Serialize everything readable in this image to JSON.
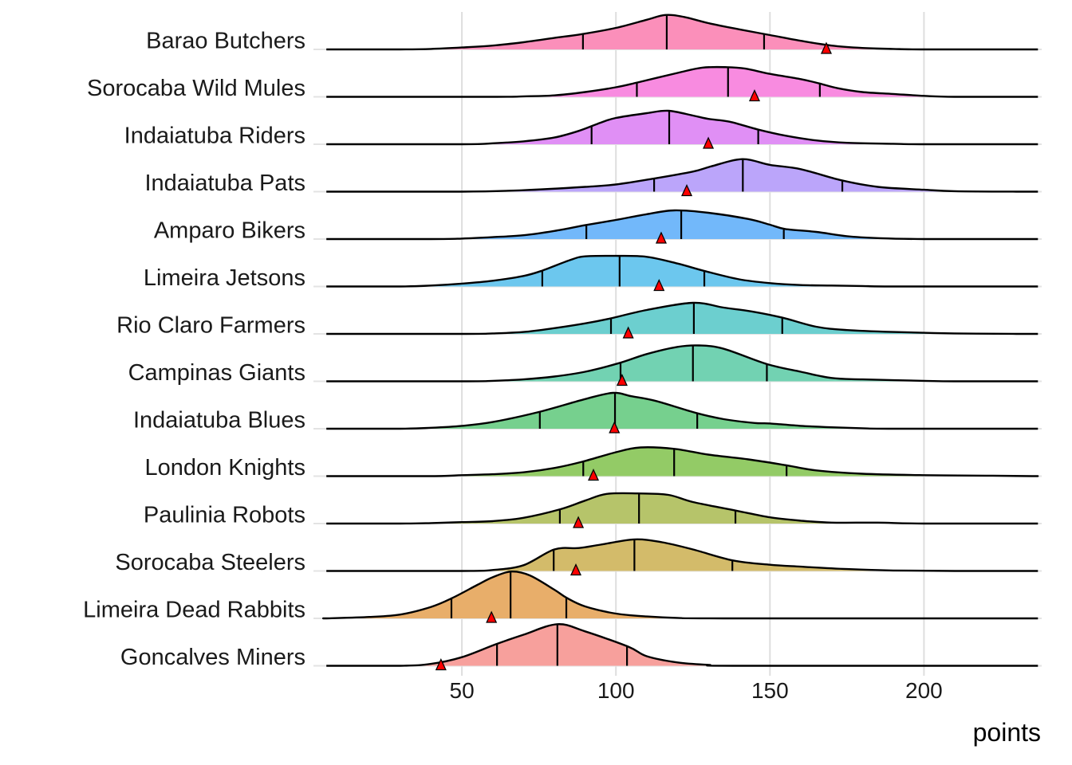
{
  "chart_data": {
    "type": "ridgeline",
    "title": "",
    "xlabel": "points",
    "ylabel": "",
    "xlim": [
      6,
      237
    ],
    "x_ticks": [
      50,
      100,
      150,
      200
    ],
    "x_tick_labels": [
      "50",
      "100",
      "150",
      "200"
    ],
    "grid": "vertical major",
    "marker_color": "#FF0000",
    "series": [
      {
        "name": "Barao Butchers",
        "color": "#FB8FBA",
        "quartiles": [
          89.3,
          116.5,
          148.1
        ],
        "marker": 168.3,
        "density": [
          [
            30,
            0
          ],
          [
            40,
            0.01
          ],
          [
            50,
            0.04
          ],
          [
            60,
            0.08
          ],
          [
            70,
            0.15
          ],
          [
            80,
            0.24
          ],
          [
            89,
            0.32
          ],
          [
            100,
            0.45
          ],
          [
            110,
            0.62
          ],
          [
            116,
            0.72
          ],
          [
            122,
            0.68
          ],
          [
            130,
            0.55
          ],
          [
            140,
            0.42
          ],
          [
            150,
            0.3
          ],
          [
            160,
            0.18
          ],
          [
            170,
            0.08
          ],
          [
            180,
            0.03
          ],
          [
            190,
            0.01
          ],
          [
            200,
            0
          ]
        ]
      },
      {
        "name": "Sorocaba Wild Mules",
        "color": "#F88BE0",
        "quartiles": [
          106.8,
          136.4,
          166.2
        ],
        "marker": 145,
        "density": [
          [
            60,
            0
          ],
          [
            70,
            0.01
          ],
          [
            80,
            0.03
          ],
          [
            90,
            0.1
          ],
          [
            100,
            0.2
          ],
          [
            107,
            0.3
          ],
          [
            120,
            0.5
          ],
          [
            128,
            0.61
          ],
          [
            136,
            0.62
          ],
          [
            142,
            0.59
          ],
          [
            150,
            0.48
          ],
          [
            160,
            0.37
          ],
          [
            166,
            0.28
          ],
          [
            172,
            0.18
          ],
          [
            180,
            0.1
          ],
          [
            190,
            0.06
          ],
          [
            200,
            0.02
          ],
          [
            210,
            0
          ]
        ]
      },
      {
        "name": "Indaiatuba Riders",
        "color": "#E08FF5",
        "quartiles": [
          92.1,
          117.3,
          146.2
        ],
        "marker": 130,
        "density": [
          [
            50,
            0
          ],
          [
            60,
            0.02
          ],
          [
            70,
            0.06
          ],
          [
            80,
            0.14
          ],
          [
            88,
            0.28
          ],
          [
            95,
            0.45
          ],
          [
            100,
            0.55
          ],
          [
            110,
            0.65
          ],
          [
            117,
            0.7
          ],
          [
            125,
            0.6
          ],
          [
            130,
            0.53
          ],
          [
            137,
            0.47
          ],
          [
            146,
            0.31
          ],
          [
            155,
            0.18
          ],
          [
            165,
            0.08
          ],
          [
            175,
            0.03
          ],
          [
            190,
            0.01
          ],
          [
            200,
            0
          ]
        ]
      },
      {
        "name": "Indaiatuba Pats",
        "color": "#BBA5FA",
        "quartiles": [
          112.4,
          141.2,
          173.5
        ],
        "marker": 123,
        "density": [
          [
            50,
            0
          ],
          [
            70,
            0.03
          ],
          [
            90,
            0.1
          ],
          [
            100,
            0.15
          ],
          [
            112,
            0.27
          ],
          [
            125,
            0.42
          ],
          [
            131,
            0.53
          ],
          [
            141,
            0.68
          ],
          [
            150,
            0.56
          ],
          [
            160,
            0.47
          ],
          [
            173,
            0.24
          ],
          [
            185,
            0.1
          ],
          [
            200,
            0.04
          ],
          [
            210,
            0.01
          ],
          [
            230,
            0
          ]
        ]
      },
      {
        "name": "Amparo Bikers",
        "color": "#72B8FA",
        "quartiles": [
          90.4,
          121.2,
          154.5
        ],
        "marker": 114.7,
        "density": [
          [
            40,
            0
          ],
          [
            50,
            0.01
          ],
          [
            60,
            0.04
          ],
          [
            70,
            0.08
          ],
          [
            80,
            0.17
          ],
          [
            90,
            0.29
          ],
          [
            100,
            0.4
          ],
          [
            110,
            0.52
          ],
          [
            119,
            0.6
          ],
          [
            130,
            0.55
          ],
          [
            143,
            0.42
          ],
          [
            150,
            0.3
          ],
          [
            155,
            0.21
          ],
          [
            165,
            0.15
          ],
          [
            175,
            0.06
          ],
          [
            185,
            0.02
          ],
          [
            200,
            0
          ]
        ]
      },
      {
        "name": "Limeira Jetsons",
        "color": "#6CC7EE",
        "quartiles": [
          76.1,
          101.2,
          128.7
        ],
        "marker": 114,
        "density": [
          [
            30,
            0
          ],
          [
            40,
            0.02
          ],
          [
            50,
            0.06
          ],
          [
            60,
            0.12
          ],
          [
            70,
            0.22
          ],
          [
            76,
            0.33
          ],
          [
            85,
            0.55
          ],
          [
            90,
            0.63
          ],
          [
            100,
            0.64
          ],
          [
            110,
            0.62
          ],
          [
            120,
            0.48
          ],
          [
            129,
            0.32
          ],
          [
            140,
            0.15
          ],
          [
            150,
            0.07
          ],
          [
            160,
            0.03
          ],
          [
            170,
            0.02
          ],
          [
            180,
            0.01
          ],
          [
            190,
            0
          ]
        ]
      },
      {
        "name": "Rio Claro Farmers",
        "color": "#6CCFCF",
        "quartiles": [
          98.4,
          125.3,
          154
        ],
        "marker": 104,
        "density": [
          [
            50,
            0
          ],
          [
            60,
            0.01
          ],
          [
            70,
            0.04
          ],
          [
            80,
            0.12
          ],
          [
            90,
            0.22
          ],
          [
            98,
            0.32
          ],
          [
            110,
            0.5
          ],
          [
            125,
            0.65
          ],
          [
            135,
            0.55
          ],
          [
            144,
            0.47
          ],
          [
            154,
            0.34
          ],
          [
            165,
            0.15
          ],
          [
            175,
            0.08
          ],
          [
            190,
            0.04
          ],
          [
            210,
            0.01
          ],
          [
            230,
            0
          ]
        ]
      },
      {
        "name": "Campinas Giants",
        "color": "#72D2B2",
        "quartiles": [
          101.5,
          125,
          149
        ],
        "marker": 102,
        "density": [
          [
            50,
            0
          ],
          [
            60,
            0.01
          ],
          [
            70,
            0.04
          ],
          [
            80,
            0.1
          ],
          [
            90,
            0.2
          ],
          [
            101,
            0.38
          ],
          [
            110,
            0.57
          ],
          [
            120,
            0.72
          ],
          [
            127,
            0.75
          ],
          [
            135,
            0.68
          ],
          [
            149,
            0.36
          ],
          [
            160,
            0.2
          ],
          [
            170,
            0.07
          ],
          [
            180,
            0.04
          ],
          [
            200,
            0.01
          ],
          [
            210,
            0
          ]
        ]
      },
      {
        "name": "Indaiatuba Blues",
        "color": "#76D08E",
        "quartiles": [
          75.3,
          99.7,
          126.4
        ],
        "marker": 99.5,
        "density": [
          [
            30,
            0
          ],
          [
            40,
            0.02
          ],
          [
            50,
            0.06
          ],
          [
            60,
            0.14
          ],
          [
            75,
            0.35
          ],
          [
            90,
            0.62
          ],
          [
            99,
            0.75
          ],
          [
            105,
            0.68
          ],
          [
            113,
            0.58
          ],
          [
            126,
            0.33
          ],
          [
            135,
            0.2
          ],
          [
            145,
            0.12
          ],
          [
            150,
            0.11
          ],
          [
            160,
            0.06
          ],
          [
            170,
            0.03
          ],
          [
            180,
            0.01
          ],
          [
            190,
            0
          ]
        ]
      },
      {
        "name": "London Knights",
        "color": "#93CB66",
        "quartiles": [
          89.4,
          118.9,
          155.4
        ],
        "marker": 92.7,
        "density": [
          [
            40,
            0
          ],
          [
            50,
            0.02
          ],
          [
            60,
            0.04
          ],
          [
            70,
            0.08
          ],
          [
            80,
            0.17
          ],
          [
            89,
            0.3
          ],
          [
            100,
            0.5
          ],
          [
            108,
            0.6
          ],
          [
            119,
            0.57
          ],
          [
            130,
            0.45
          ],
          [
            143,
            0.35
          ],
          [
            155,
            0.23
          ],
          [
            165,
            0.12
          ],
          [
            180,
            0.05
          ],
          [
            200,
            0.02
          ],
          [
            220,
            0.01
          ],
          [
            235,
            0
          ]
        ]
      },
      {
        "name": "Paulinia Robots",
        "color": "#B6C46A",
        "quartiles": [
          81.8,
          107.5,
          138.8
        ],
        "marker": 87.8,
        "density": [
          [
            30,
            0
          ],
          [
            40,
            0.01
          ],
          [
            50,
            0.03
          ],
          [
            60,
            0.05
          ],
          [
            70,
            0.12
          ],
          [
            82,
            0.3
          ],
          [
            90,
            0.48
          ],
          [
            97,
            0.62
          ],
          [
            107,
            0.63
          ],
          [
            117,
            0.6
          ],
          [
            125,
            0.45
          ],
          [
            139,
            0.27
          ],
          [
            150,
            0.13
          ],
          [
            160,
            0.06
          ],
          [
            170,
            0.02
          ],
          [
            185,
            0.02
          ],
          [
            200,
            0
          ]
        ]
      },
      {
        "name": "Sorocaba Steelers",
        "color": "#D3BB6A",
        "quartiles": [
          79.8,
          106,
          137.8
        ],
        "marker": 87,
        "density": [
          [
            50,
            0
          ],
          [
            60,
            0.02
          ],
          [
            70,
            0.12
          ],
          [
            80,
            0.45
          ],
          [
            88,
            0.48
          ],
          [
            95,
            0.55
          ],
          [
            106,
            0.66
          ],
          [
            115,
            0.6
          ],
          [
            125,
            0.45
          ],
          [
            138,
            0.22
          ],
          [
            150,
            0.13
          ],
          [
            160,
            0.09
          ],
          [
            175,
            0.04
          ],
          [
            190,
            0.01
          ],
          [
            210,
            0
          ]
        ]
      },
      {
        "name": "Limeira Dead Rabbits",
        "color": "#E8AE6A",
        "quartiles": [
          46.6,
          65.8,
          83.9
        ],
        "marker": 59.6,
        "density": [
          [
            6,
            0
          ],
          [
            20,
            0.03
          ],
          [
            30,
            0.08
          ],
          [
            40,
            0.24
          ],
          [
            47,
            0.43
          ],
          [
            55,
            0.7
          ],
          [
            60,
            0.86
          ],
          [
            66,
            0.98
          ],
          [
            72,
            0.9
          ],
          [
            80,
            0.6
          ],
          [
            84,
            0.43
          ],
          [
            90,
            0.25
          ],
          [
            100,
            0.1
          ],
          [
            110,
            0.04
          ],
          [
            120,
            0.01
          ],
          [
            135,
            0
          ]
        ]
      },
      {
        "name": "Goncalves Miners",
        "color": "#F7A09C",
        "quartiles": [
          61.4,
          81,
          103.6
        ],
        "marker": 43.2,
        "density": [
          [
            30,
            0
          ],
          [
            40,
            0.04
          ],
          [
            50,
            0.18
          ],
          [
            61,
            0.45
          ],
          [
            70,
            0.65
          ],
          [
            81,
            0.87
          ],
          [
            90,
            0.72
          ],
          [
            104,
            0.4
          ],
          [
            110,
            0.2
          ],
          [
            120,
            0.07
          ],
          [
            130,
            0.02
          ],
          [
            140,
            0
          ]
        ]
      }
    ]
  }
}
